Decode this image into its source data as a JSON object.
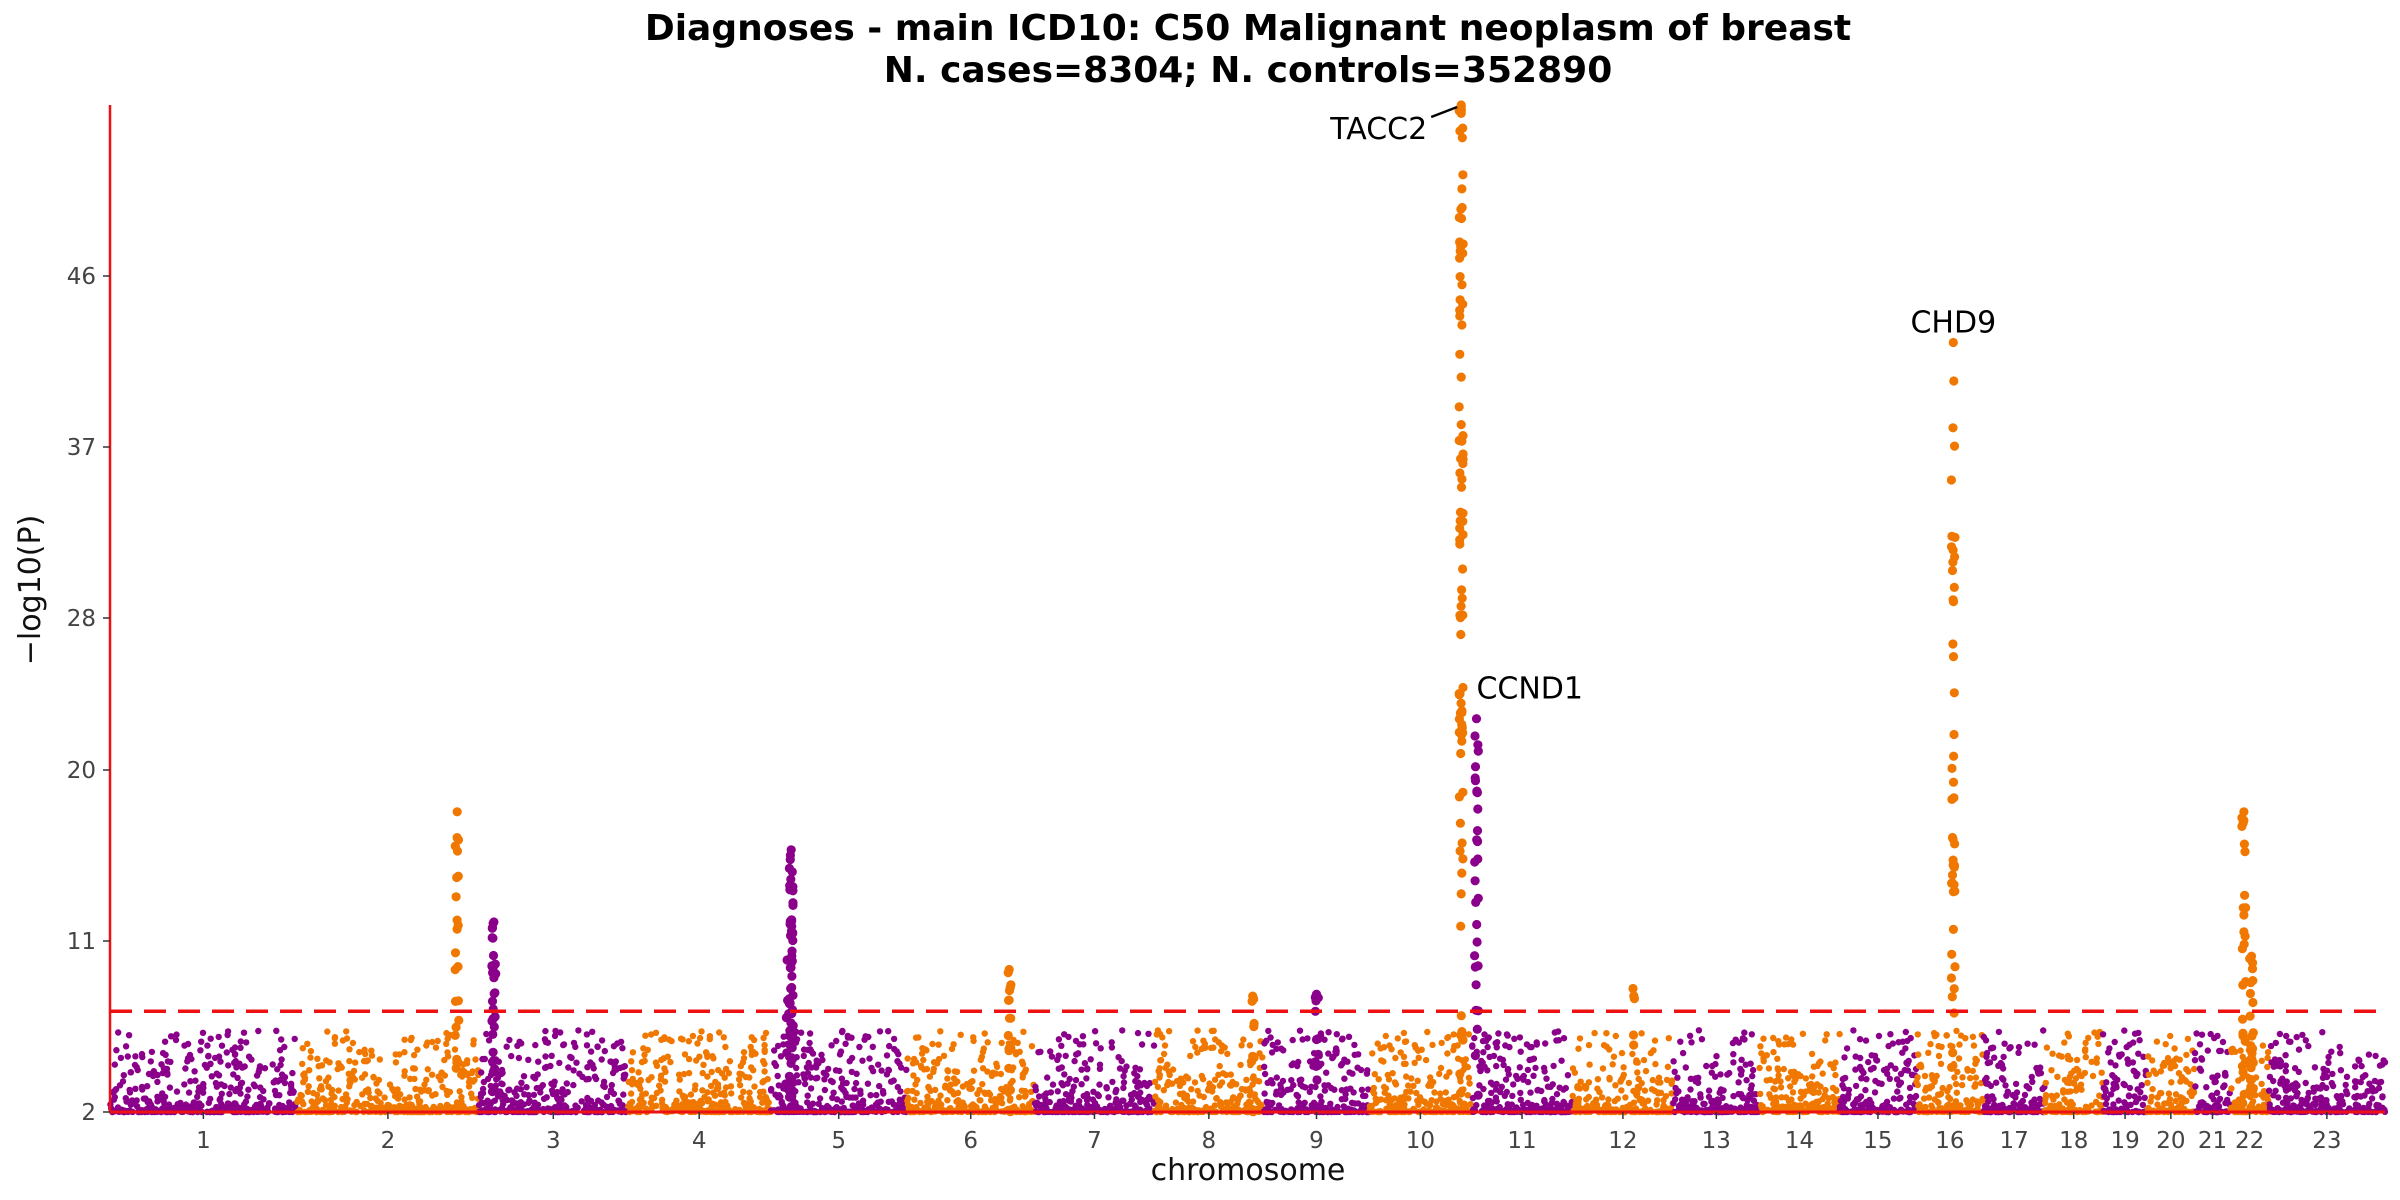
{
  "chart_data": {
    "type": "scatter",
    "title": "Diagnoses - main ICD10: C50 Malignant neoplasm of breast",
    "subtitle": "N. cases=8304; N. controls=352890",
    "xlabel": "chromosome",
    "ylabel": "−log10(P)",
    "ylim": [
      2,
      55
    ],
    "y_ticks": [
      2,
      11,
      20,
      28,
      37,
      46
    ],
    "significance_line": 7.3,
    "colors": {
      "odd": "#8b008b",
      "even": "#f07800",
      "threshold": "#ee1111"
    },
    "chromosomes": [
      {
        "label": "1",
        "length": 249
      },
      {
        "label": "2",
        "length": 243
      },
      {
        "label": "3",
        "length": 198
      },
      {
        "label": "4",
        "length": 191
      },
      {
        "label": "5",
        "length": 181
      },
      {
        "label": "6",
        "length": 171
      },
      {
        "label": "7",
        "length": 159
      },
      {
        "label": "8",
        "length": 146
      },
      {
        "label": "9",
        "length": 141
      },
      {
        "label": "10",
        "length": 136
      },
      {
        "label": "11",
        "length": 135
      },
      {
        "label": "12",
        "length": 134
      },
      {
        "label": "13",
        "length": 115
      },
      {
        "label": "14",
        "length": 107
      },
      {
        "label": "15",
        "length": 102
      },
      {
        "label": "16",
        "length": 90
      },
      {
        "label": "17",
        "length": 81
      },
      {
        "label": "18",
        "length": 78
      },
      {
        "label": "19",
        "length": 59
      },
      {
        "label": "20",
        "length": 63
      },
      {
        "label": "21",
        "length": 48
      },
      {
        "label": "22",
        "length": 51
      },
      {
        "label": "23",
        "length": 155
      }
    ],
    "peaks": [
      {
        "chr": "2",
        "pos": 0.88,
        "maxp": 17.8,
        "n": 22
      },
      {
        "chr": "3",
        "pos": 0.1,
        "maxp": 12.0,
        "n": 30
      },
      {
        "chr": "5",
        "pos": 0.15,
        "maxp": 15.8,
        "n": 60
      },
      {
        "chr": "5",
        "pos": 0.12,
        "maxp": 10.0,
        "n": 6
      },
      {
        "chr": "6",
        "pos": 0.8,
        "maxp": 9.5,
        "n": 16
      },
      {
        "chr": "8",
        "pos": 0.9,
        "maxp": 8.1,
        "n": 8
      },
      {
        "chr": "9",
        "pos": 0.5,
        "maxp": 8.2,
        "n": 12
      },
      {
        "chr": "10",
        "pos": 0.9,
        "maxp": 55.0,
        "n": 90
      },
      {
        "chr": "11",
        "pos": 0.05,
        "maxp": 22.7,
        "n": 30
      },
      {
        "chr": "12",
        "pos": 0.6,
        "maxp": 8.5,
        "n": 4
      },
      {
        "chr": "16",
        "pos": 0.55,
        "maxp": 42.5,
        "n": 45
      },
      {
        "chr": "22",
        "pos": 0.35,
        "maxp": 17.8,
        "n": 25
      },
      {
        "chr": "22",
        "pos": 0.55,
        "maxp": 10.2,
        "n": 22
      }
    ],
    "annotations": [
      {
        "gene": "TACC2",
        "chr": "10",
        "pos": 0.9,
        "p": 55.0
      },
      {
        "gene": "CCND1",
        "chr": "11",
        "pos": 0.05,
        "p": 22.7
      },
      {
        "gene": "CHD9",
        "chr": "16",
        "pos": 0.55,
        "p": 42.5
      }
    ]
  }
}
